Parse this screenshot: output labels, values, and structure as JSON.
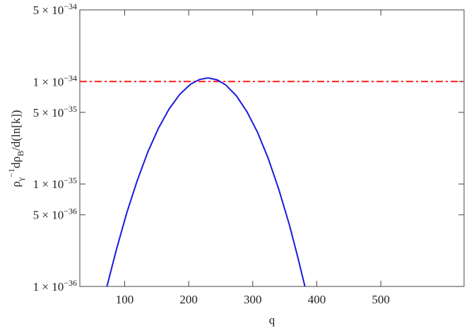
{
  "chart_data": {
    "type": "line",
    "xlabel": "q",
    "ylabel": [
      "ρ",
      "γ",
      "−1",
      "dρ",
      "B",
      "/d(ln[k])"
    ],
    "x": [
      72.4,
      86.8,
      103.3,
      119.9,
      136.4,
      153.0,
      169.5,
      186.1,
      202.6,
      217.0,
      230.2,
      244.6,
      257.8,
      274.4,
      291.0,
      307.5,
      324.1,
      340.6,
      357.2,
      370.4,
      381.5
    ],
    "series": [
      {
        "color": "#1a1adc",
        "values": [
          1e-36,
          2.25e-36,
          5.24e-36,
          1.09e-35,
          2.07e-35,
          3.52e-35,
          5.41e-35,
          7.5e-35,
          9.38e-35,
          1.047e-34,
          1.083e-34,
          1.037e-34,
          9.27e-35,
          7.26e-35,
          5.08e-35,
          3.19e-35,
          1.78e-35,
          8.92e-36,
          3.99e-36,
          1.93e-36,
          1e-36
        ]
      }
    ],
    "reference_line": {
      "value": 1e-34,
      "color": "#ff1a1a",
      "style": "dashdot"
    },
    "xlim": [
      30,
      630
    ],
    "xticks": [
      100,
      200,
      300,
      400,
      500
    ],
    "ylim": [
      1e-36,
      5e-34
    ],
    "log_y": true,
    "yticks": [
      {
        "value": 1e-36,
        "label": "1 × 10",
        "exponent": "−36"
      },
      {
        "value": 5e-36,
        "label": "5 × 10",
        "exponent": "−36"
      },
      {
        "value": 1e-35,
        "label": "1 × 10",
        "exponent": "−35"
      },
      {
        "value": 5e-35,
        "label": "5 × 10",
        "exponent": "−35"
      },
      {
        "value": 1e-34,
        "label": "1 × 10",
        "exponent": "−34"
      },
      {
        "value": 5e-34,
        "label": "5 × 10",
        "exponent": "−34"
      }
    ]
  }
}
